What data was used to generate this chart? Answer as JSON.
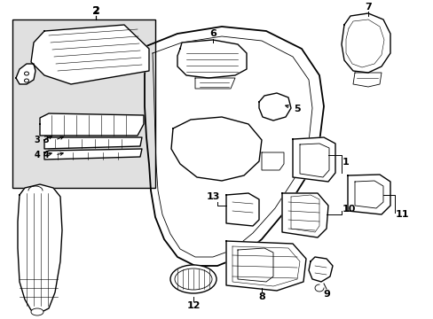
{
  "background_color": "#ffffff",
  "inset_bg_color": "#e0e0e0",
  "line_color": "#000000",
  "fig_width": 4.89,
  "fig_height": 3.6,
  "dpi": 100
}
